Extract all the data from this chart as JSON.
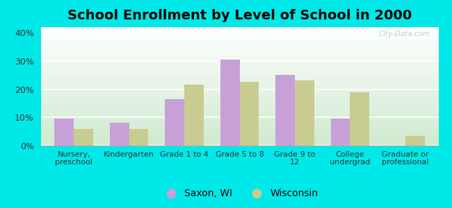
{
  "title": "School Enrollment by Level of School in 2000",
  "categories": [
    "Nursery,\npreschool",
    "Kindergarten",
    "Grade 1 to 4",
    "Grade 5 to 8",
    "Grade 9 to\n12",
    "College\nundergrad",
    "Graduate or\nprofessional"
  ],
  "saxon_values": [
    9.5,
    8.2,
    16.5,
    30.5,
    25.0,
    9.5,
    0.0
  ],
  "wisconsin_values": [
    6.0,
    5.8,
    21.5,
    22.5,
    23.0,
    19.0,
    3.5
  ],
  "saxon_color": "#c8a0d8",
  "wisconsin_color": "#c8cc90",
  "background_color": "#00e8e8",
  "ylim": [
    0,
    42
  ],
  "yticks": [
    0,
    10,
    20,
    30,
    40
  ],
  "ytick_labels": [
    "0%",
    "10%",
    "20%",
    "30%",
    "40%"
  ],
  "legend_labels": [
    "Saxon, WI",
    "Wisconsin"
  ],
  "title_fontsize": 14,
  "bar_width": 0.35,
  "watermark": "City-Data.com"
}
